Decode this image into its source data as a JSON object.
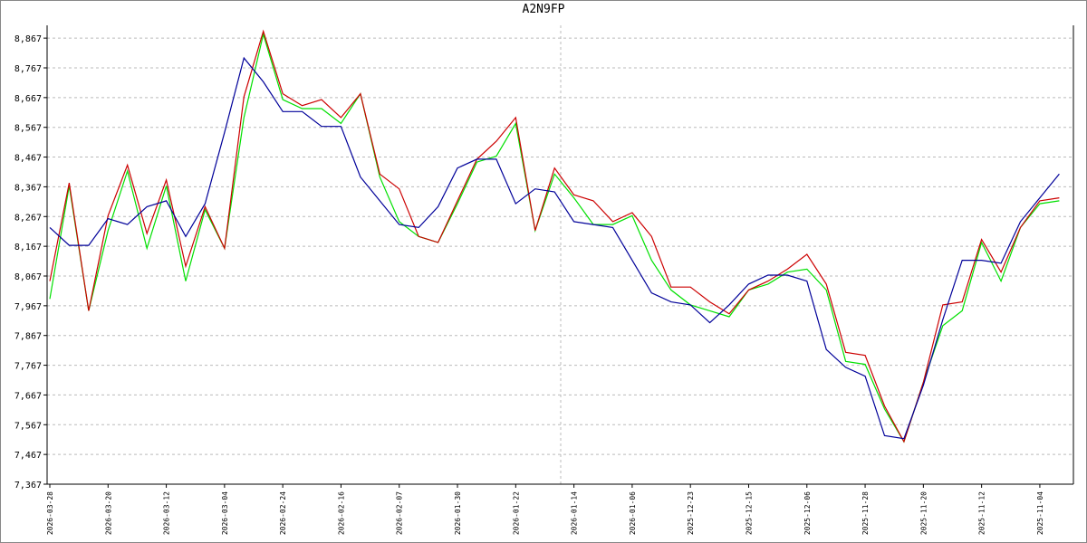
{
  "chart_data": {
    "type": "line",
    "title": "A2N9FP",
    "categories": [
      "2026-03-28",
      null,
      null,
      "2026-03-20",
      null,
      null,
      "2026-03-12",
      null,
      null,
      "2026-03-04",
      null,
      null,
      "2026-02-24",
      null,
      null,
      "2026-02-16",
      null,
      null,
      "2026-02-07",
      null,
      null,
      "2026-01-30",
      null,
      null,
      "2026-01-22",
      null,
      null,
      "2026-01-14",
      null,
      null,
      "2026-01-06",
      null,
      null,
      "2025-12-23",
      null,
      null,
      "2025-12-15",
      null,
      null,
      "2025-12-06",
      null,
      null,
      "2025-11-28",
      null,
      null,
      "2025-11-20",
      null,
      null,
      "2025-11-12",
      null,
      null,
      "2025-11-04",
      null
    ],
    "series": [
      {
        "color": "#00e000",
        "values": [
          7.99,
          8.37,
          7.95,
          8.22,
          8.42,
          8.16,
          8.37,
          8.05,
          8.29,
          8.16,
          8.6,
          8.88,
          8.66,
          8.63,
          8.63,
          8.58,
          8.68,
          8.4,
          8.25,
          8.2,
          8.18,
          8.31,
          8.45,
          8.47,
          8.58,
          8.22,
          8.41,
          8.33,
          8.24,
          8.24,
          8.27,
          8.12,
          8.02,
          7.97,
          7.95,
          7.93,
          8.02,
          8.04,
          8.08,
          8.09,
          8.02,
          7.78,
          7.77,
          7.62,
          7.51,
          7.71,
          7.9,
          7.95,
          8.18,
          8.05,
          8.23,
          8.31,
          8.32
        ]
      },
      {
        "color": "#cc0000",
        "values": [
          8.05,
          8.38,
          7.95,
          8.27,
          8.44,
          8.21,
          8.39,
          8.1,
          8.3,
          8.16,
          8.67,
          8.89,
          8.68,
          8.64,
          8.66,
          8.6,
          8.68,
          8.41,
          8.36,
          8.2,
          8.18,
          8.32,
          8.46,
          8.52,
          8.6,
          8.22,
          8.43,
          8.34,
          8.32,
          8.25,
          8.28,
          8.2,
          8.03,
          8.03,
          7.98,
          7.94,
          8.02,
          8.05,
          8.09,
          8.14,
          8.04,
          7.81,
          7.8,
          7.63,
          7.51,
          7.71,
          7.97,
          7.98,
          8.19,
          8.08,
          8.23,
          8.32,
          8.33
        ]
      },
      {
        "color": "#000099",
        "values": [
          8.23,
          8.17,
          8.17,
          8.26,
          8.24,
          8.3,
          8.32,
          8.2,
          8.31,
          8.55,
          8.8,
          8.72,
          8.62,
          8.62,
          8.57,
          8.57,
          8.4,
          8.32,
          8.24,
          8.23,
          8.3,
          8.43,
          8.46,
          8.46,
          8.31,
          8.36,
          8.35,
          8.25,
          8.24,
          8.23,
          8.12,
          8.01,
          7.98,
          7.97,
          7.91,
          7.97,
          8.04,
          8.07,
          8.07,
          8.05,
          7.82,
          7.76,
          7.73,
          7.53,
          7.52,
          7.7,
          7.92,
          8.12,
          8.12,
          8.11,
          8.25,
          8.33,
          8.41
        ]
      }
    ],
    "ylim": [
      7.367,
      8.91
    ],
    "yticks": [
      {
        "value": 7.367,
        "label": "7,367"
      },
      {
        "value": 7.467,
        "label": "7,467"
      },
      {
        "value": 7.567,
        "label": "7,567"
      },
      {
        "value": 7.667,
        "label": "7,667"
      },
      {
        "value": 7.767,
        "label": "7,767"
      },
      {
        "value": 7.867,
        "label": "7,867"
      },
      {
        "value": 7.967,
        "label": "7,967"
      },
      {
        "value": 8.067,
        "label": "8,067"
      },
      {
        "value": 8.167,
        "label": "8,167"
      },
      {
        "value": 8.267,
        "label": "8,267"
      },
      {
        "value": 8.367,
        "label": "8,367"
      },
      {
        "value": 8.467,
        "label": "8,467"
      },
      {
        "value": 8.567,
        "label": "8,567"
      },
      {
        "value": 8.667,
        "label": "8,667"
      },
      {
        "value": 8.767,
        "label": "8,767"
      },
      {
        "value": 8.867,
        "label": "8,867"
      }
    ],
    "grid": true
  }
}
